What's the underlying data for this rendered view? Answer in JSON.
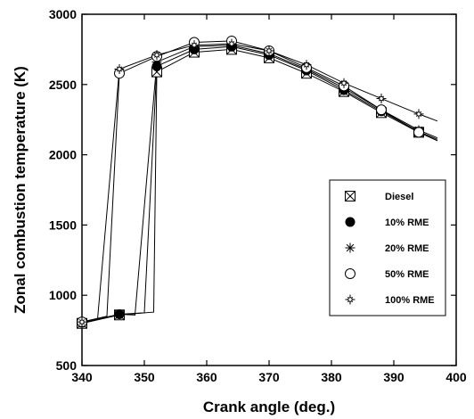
{
  "chart_data": {
    "type": "line",
    "xlabel": "Crank angle (deg.)",
    "ylabel": "Zonal combustion temperature (K)",
    "xlim": [
      340,
      400
    ],
    "ylim": [
      500,
      3000
    ],
    "x_ticks": [
      "340",
      "350",
      "360",
      "370",
      "380",
      "390",
      "400"
    ],
    "y_ticks": [
      "500",
      "1000",
      "1500",
      "2000",
      "2500",
      "3000"
    ],
    "grid": false,
    "legend_position": "center-right",
    "series": [
      {
        "name": "Diesel",
        "marker": "boxx",
        "x": [
          340,
          346,
          351.5,
          352,
          358,
          364,
          370,
          376,
          382,
          388,
          394,
          397
        ],
        "y": [
          800,
          860,
          880,
          2590,
          2730,
          2750,
          2690,
          2580,
          2450,
          2300,
          2160,
          2100
        ],
        "marker_x": [
          340,
          346,
          352,
          358,
          364,
          370,
          376,
          382,
          388,
          394
        ]
      },
      {
        "name": "10% RME",
        "marker": "filled-circle",
        "x": [
          340,
          346,
          350,
          352,
          358,
          364,
          370,
          376,
          382,
          388,
          394,
          397
        ],
        "y": [
          805,
          865,
          875,
          2630,
          2750,
          2770,
          2710,
          2600,
          2460,
          2310,
          2165,
          2110
        ],
        "marker_x": [
          340,
          346,
          352,
          358,
          364,
          370,
          376,
          382,
          388,
          394
        ]
      },
      {
        "name": "20% RME",
        "marker": "asterisk",
        "x": [
          340,
          346,
          348.5,
          352,
          358,
          364,
          370,
          376,
          382,
          388,
          394,
          397
        ],
        "y": [
          805,
          865,
          860,
          2660,
          2770,
          2780,
          2720,
          2610,
          2475,
          2320,
          2175,
          2120
        ],
        "marker_x": [
          340,
          346,
          352,
          358,
          364,
          370,
          376,
          382,
          388,
          394
        ]
      },
      {
        "name": "50% RME",
        "marker": "open-circle",
        "x": [
          340,
          344,
          346,
          352,
          358,
          364,
          370,
          376,
          382,
          388,
          394,
          397
        ],
        "y": [
          810,
          850,
          2580,
          2700,
          2800,
          2810,
          2740,
          2620,
          2490,
          2320,
          2160,
          2100
        ],
        "marker_x": [
          340,
          346,
          352,
          358,
          364,
          370,
          376,
          382,
          388,
          394
        ]
      },
      {
        "name": "100% RME",
        "marker": "star",
        "x": [
          340,
          342.5,
          346,
          352,
          358,
          364,
          370,
          376,
          382,
          388,
          394,
          397
        ],
        "y": [
          810,
          830,
          2610,
          2710,
          2780,
          2790,
          2740,
          2640,
          2510,
          2400,
          2290,
          2240
        ],
        "marker_x": [
          340,
          346,
          352,
          358,
          364,
          370,
          376,
          382,
          388,
          394
        ]
      }
    ]
  }
}
